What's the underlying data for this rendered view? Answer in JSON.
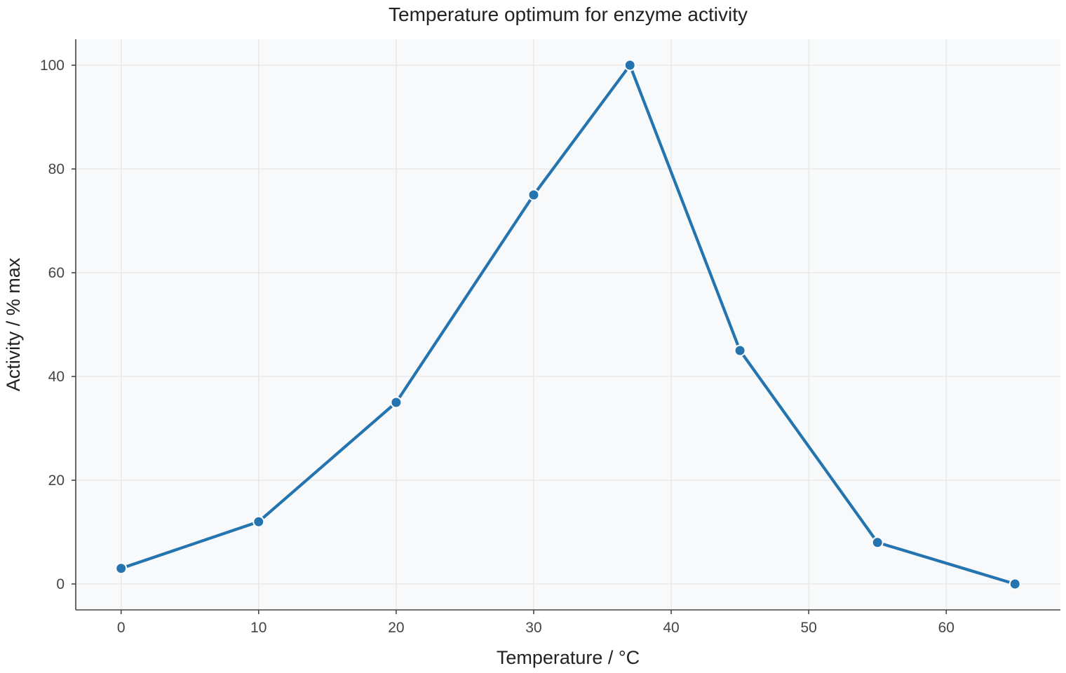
{
  "chart_data": {
    "type": "line",
    "title": "Temperature optimum for enzyme activity",
    "xlabel": "Temperature / °C",
    "ylabel": "Activity / % max",
    "x": [
      0,
      10,
      20,
      30,
      37,
      45,
      55,
      65
    ],
    "series": [
      {
        "values": [
          3,
          12,
          35,
          75,
          100,
          45,
          8,
          0
        ]
      }
    ],
    "xlim": [
      -3.3,
      68.3
    ],
    "ylim": [
      -5,
      105
    ],
    "xticks": [
      0,
      10,
      20,
      30,
      40,
      50,
      60
    ],
    "yticks": [
      0,
      20,
      40,
      60,
      80,
      100
    ],
    "grid": true,
    "colors": {
      "line": "#2474b0",
      "marker_edge": "#ffffff",
      "plot_background": "#f8f9fa",
      "grid": "#e6e6e6",
      "axis": "#444444"
    }
  }
}
